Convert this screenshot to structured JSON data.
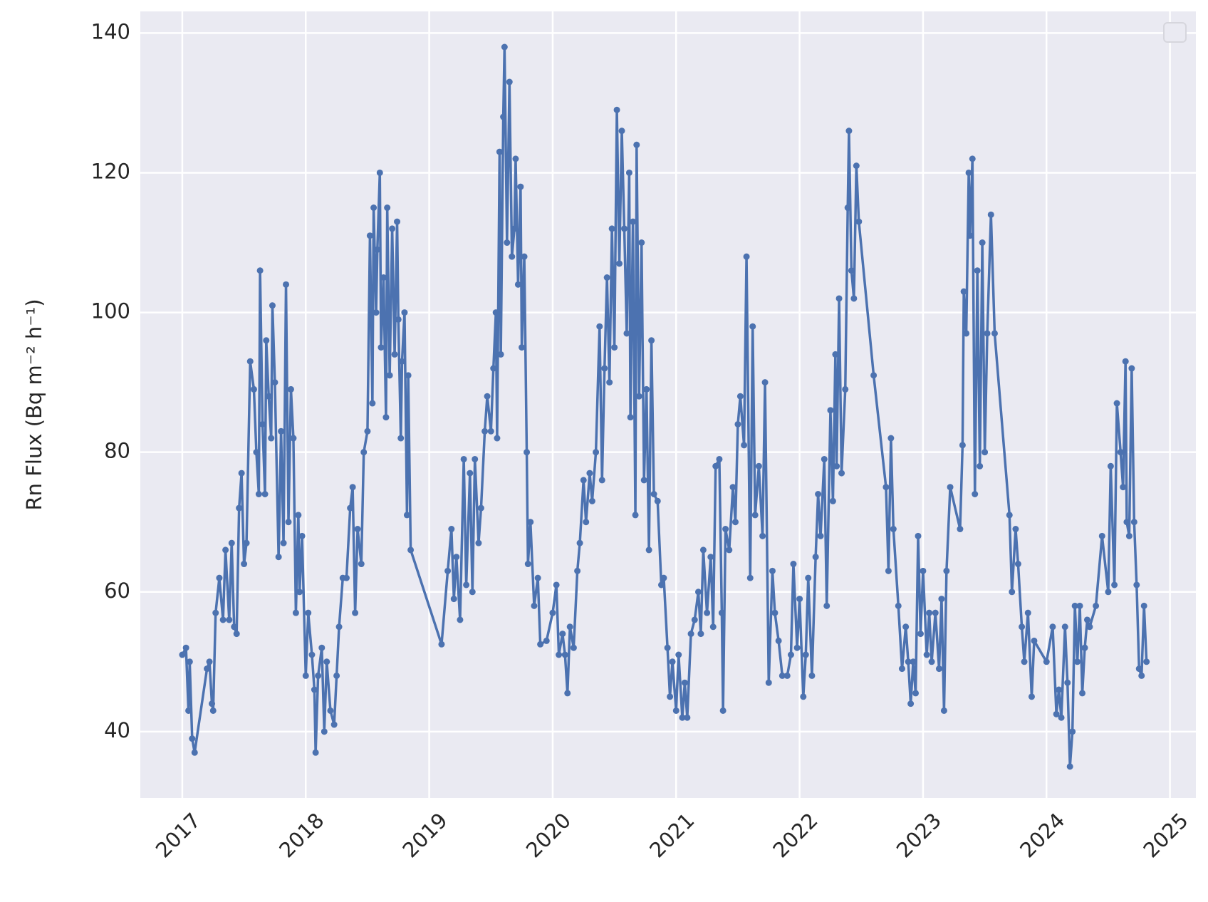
{
  "chart_data": {
    "type": "line",
    "ylabel": "Rn Flux (Bq m⁻² h⁻¹)",
    "color": "#4c72b0",
    "grid": true,
    "markers": true,
    "xlim": [
      2016.66,
      2025.21
    ],
    "ylim": [
      30.5,
      143.1
    ],
    "xticks": [
      2017,
      2018,
      2019,
      2020,
      2021,
      2022,
      2023,
      2024,
      2025
    ],
    "yticks": [
      40,
      60,
      80,
      100,
      120,
      140
    ],
    "series": [
      {
        "name": null,
        "color": "#4c72b0",
        "x": [
          2017.0,
          2017.03,
          2017.05,
          2017.06,
          2017.08,
          2017.1,
          2017.2,
          2017.22,
          2017.24,
          2017.25,
          2017.27,
          2017.3,
          2017.33,
          2017.35,
          2017.38,
          2017.4,
          2017.42,
          2017.44,
          2017.46,
          2017.48,
          2017.5,
          2017.52,
          2017.55,
          2017.58,
          2017.6,
          2017.62,
          2017.63,
          2017.65,
          2017.67,
          2017.68,
          2017.7,
          2017.72,
          2017.73,
          2017.75,
          2017.78,
          2017.8,
          2017.82,
          2017.84,
          2017.86,
          2017.88,
          2017.9,
          2017.92,
          2017.94,
          2017.95,
          2017.97,
          2018.0,
          2018.02,
          2018.05,
          2018.07,
          2018.08,
          2018.1,
          2018.13,
          2018.15,
          2018.17,
          2018.2,
          2018.23,
          2018.25,
          2018.27,
          2018.3,
          2018.33,
          2018.36,
          2018.38,
          2018.4,
          2018.42,
          2018.45,
          2018.47,
          2018.5,
          2018.52,
          2018.54,
          2018.55,
          2018.57,
          2018.58,
          2018.6,
          2018.61,
          2018.63,
          2018.65,
          2018.66,
          2018.68,
          2018.7,
          2018.72,
          2018.74,
          2018.75,
          2018.77,
          2018.78,
          2018.8,
          2018.82,
          2018.83,
          2018.85,
          2019.1,
          2019.15,
          2019.18,
          2019.2,
          2019.22,
          2019.25,
          2019.28,
          2019.3,
          2019.33,
          2019.35,
          2019.37,
          2019.4,
          2019.42,
          2019.45,
          2019.47,
          2019.5,
          2019.52,
          2019.54,
          2019.55,
          2019.57,
          2019.58,
          2019.6,
          2019.61,
          2019.63,
          2019.65,
          2019.67,
          2019.69,
          2019.7,
          2019.72,
          2019.74,
          2019.75,
          2019.77,
          2019.79,
          2019.8,
          2019.82,
          2019.85,
          2019.88,
          2019.9,
          2019.95,
          2020.0,
          2020.03,
          2020.05,
          2020.08,
          2020.1,
          2020.12,
          2020.14,
          2020.17,
          2020.2,
          2020.22,
          2020.25,
          2020.27,
          2020.3,
          2020.32,
          2020.35,
          2020.38,
          2020.4,
          2020.42,
          2020.44,
          2020.46,
          2020.48,
          2020.5,
          2020.52,
          2020.54,
          2020.56,
          2020.58,
          2020.6,
          2020.62,
          2020.63,
          2020.65,
          2020.67,
          2020.68,
          2020.7,
          2020.72,
          2020.74,
          2020.76,
          2020.78,
          2020.8,
          2020.82,
          2020.85,
          2020.88,
          2020.9,
          2020.93,
          2020.95,
          2020.97,
          2021.0,
          2021.02,
          2021.05,
          2021.07,
          2021.09,
          2021.12,
          2021.15,
          2021.18,
          2021.2,
          2021.22,
          2021.25,
          2021.28,
          2021.3,
          2021.32,
          2021.35,
          2021.37,
          2021.38,
          2021.4,
          2021.43,
          2021.46,
          2021.48,
          2021.5,
          2021.52,
          2021.55,
          2021.57,
          2021.6,
          2021.62,
          2021.64,
          2021.67,
          2021.7,
          2021.72,
          2021.75,
          2021.78,
          2021.8,
          2021.83,
          2021.86,
          2021.9,
          2021.93,
          2021.95,
          2021.98,
          2022.0,
          2022.03,
          2022.05,
          2022.07,
          2022.1,
          2022.13,
          2022.15,
          2022.17,
          2022.2,
          2022.22,
          2022.25,
          2022.27,
          2022.29,
          2022.3,
          2022.32,
          2022.34,
          2022.37,
          2022.39,
          2022.4,
          2022.42,
          2022.44,
          2022.46,
          2022.48,
          2022.6,
          2022.7,
          2022.72,
          2022.74,
          2022.76,
          2022.8,
          2022.83,
          2022.86,
          2022.88,
          2022.9,
          2022.92,
          2022.94,
          2022.96,
          2022.98,
          2023.0,
          2023.03,
          2023.05,
          2023.07,
          2023.1,
          2023.13,
          2023.15,
          2023.17,
          2023.19,
          2023.22,
          2023.3,
          2023.32,
          2023.33,
          2023.35,
          2023.37,
          2023.38,
          2023.4,
          2023.42,
          2023.44,
          2023.46,
          2023.48,
          2023.5,
          2023.52,
          2023.55,
          2023.58,
          2023.7,
          2023.72,
          2023.75,
          2023.77,
          2023.8,
          2023.82,
          2023.85,
          2023.88,
          2023.9,
          2024.0,
          2024.05,
          2024.08,
          2024.1,
          2024.12,
          2024.15,
          2024.17,
          2024.19,
          2024.21,
          2024.23,
          2024.25,
          2024.27,
          2024.29,
          2024.31,
          2024.33,
          2024.35,
          2024.4,
          2024.45,
          2024.5,
          2024.52,
          2024.55,
          2024.57,
          2024.6,
          2024.62,
          2024.64,
          2024.65,
          2024.67,
          2024.69,
          2024.71,
          2024.73,
          2024.75,
          2024.77,
          2024.79,
          2024.81
        ],
        "values": [
          51,
          52,
          43,
          50,
          39,
          37,
          49,
          50,
          44,
          43,
          57,
          62,
          56,
          66,
          56,
          67,
          55,
          54,
          72,
          77,
          64,
          67,
          93,
          89,
          80,
          74,
          106,
          84,
          74,
          96,
          88,
          82,
          101,
          90,
          65,
          83,
          67,
          104,
          70,
          89,
          82,
          57,
          71,
          60,
          68,
          48,
          57,
          51,
          46,
          37,
          48,
          52,
          40,
          50,
          43,
          41,
          48,
          55,
          62,
          62,
          72,
          75,
          57,
          69,
          64,
          80,
          83,
          111,
          87,
          115,
          100,
          109,
          120,
          95,
          105,
          85,
          115,
          91,
          112,
          94,
          113,
          99,
          82,
          93,
          100,
          71,
          91,
          66,
          52.5,
          63,
          69,
          59,
          65,
          56,
          79,
          61,
          77,
          60,
          79,
          67,
          72,
          83,
          88,
          83,
          92,
          100,
          82,
          123,
          94,
          128,
          138,
          110,
          133,
          108,
          112,
          122,
          104,
          118,
          95,
          108,
          80,
          64,
          70,
          58,
          62,
          52.5,
          53,
          57,
          61,
          51,
          54,
          51,
          45.5,
          55,
          52,
          63,
          67,
          76,
          70,
          77,
          73,
          80,
          98,
          76,
          92,
          105,
          90,
          112,
          95,
          129,
          107,
          126,
          112,
          97,
          120,
          85,
          113,
          71,
          124,
          88,
          110,
          76,
          89,
          66,
          96,
          74,
          73,
          61,
          62,
          52,
          45,
          50,
          43,
          51,
          42,
          47,
          42,
          54,
          56,
          60,
          54,
          66,
          57,
          65,
          55,
          78,
          79,
          57,
          43,
          69,
          66,
          75,
          70,
          84,
          88,
          81,
          108,
          62,
          98,
          71,
          78,
          68,
          90,
          47,
          63,
          57,
          53,
          48,
          48,
          51,
          64,
          52,
          59,
          45,
          51,
          62,
          48,
          65,
          74,
          68,
          79,
          58,
          86,
          73,
          94,
          78,
          102,
          77,
          89,
          115,
          126,
          106,
          102,
          121,
          113,
          91,
          75,
          63,
          82,
          69,
          58,
          49,
          55,
          50,
          44,
          50,
          45.5,
          68,
          54,
          63,
          51,
          57,
          50,
          57,
          49,
          59,
          43,
          63,
          75,
          69,
          81,
          103,
          97,
          120,
          111,
          122,
          74,
          106,
          78,
          110,
          80,
          97,
          114,
          97,
          71,
          60,
          69,
          64,
          55,
          50,
          57,
          45,
          53,
          50,
          55,
          42.5,
          46,
          42,
          55,
          47,
          35,
          40,
          58,
          50,
          58,
          45.5,
          52,
          56,
          55,
          58,
          68,
          60,
          78,
          61,
          87,
          80,
          75,
          93,
          70,
          68,
          92,
          70,
          61,
          49,
          48,
          58,
          50
        ]
      }
    ]
  }
}
